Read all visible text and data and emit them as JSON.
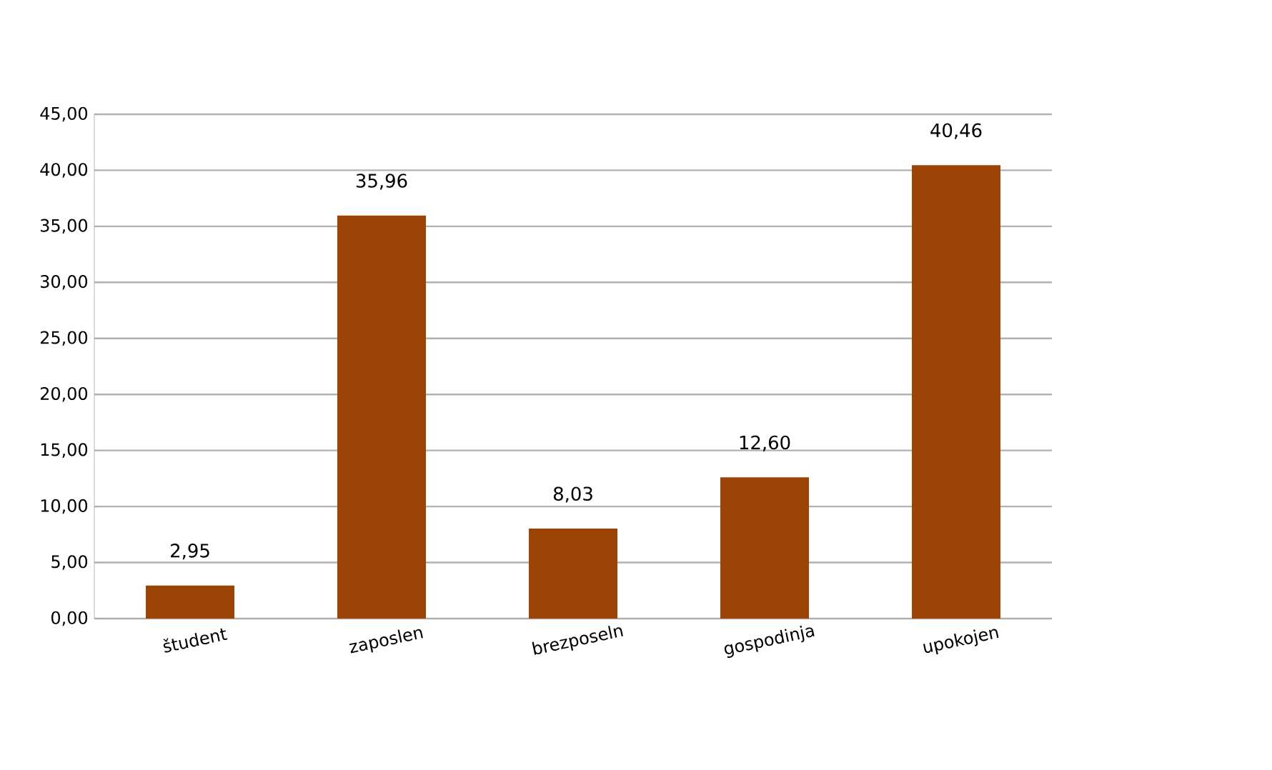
{
  "chart_data": {
    "type": "bar",
    "categories": [
      "študent",
      "zaposlen",
      "brezposeln",
      "gospodinja",
      "upokojen"
    ],
    "values": [
      2.95,
      35.96,
      8.03,
      12.6,
      40.46
    ],
    "value_labels": [
      "2,95",
      "35,96",
      "8,03",
      "12,60",
      "40,46"
    ],
    "color": "#9c4306",
    "ylim": [
      0,
      45
    ],
    "yticks": [
      {
        "value": 0,
        "label": "0,00"
      },
      {
        "value": 5,
        "label": "5,00"
      },
      {
        "value": 10,
        "label": "10,00"
      },
      {
        "value": 15,
        "label": "15,00"
      },
      {
        "value": 20,
        "label": "20,00"
      },
      {
        "value": 25,
        "label": "25,00"
      },
      {
        "value": 30,
        "label": "30,00"
      },
      {
        "value": 35,
        "label": "35,00"
      },
      {
        "value": 40,
        "label": "40,00"
      },
      {
        "value": 45,
        "label": "45,00"
      }
    ],
    "grid": "y"
  }
}
